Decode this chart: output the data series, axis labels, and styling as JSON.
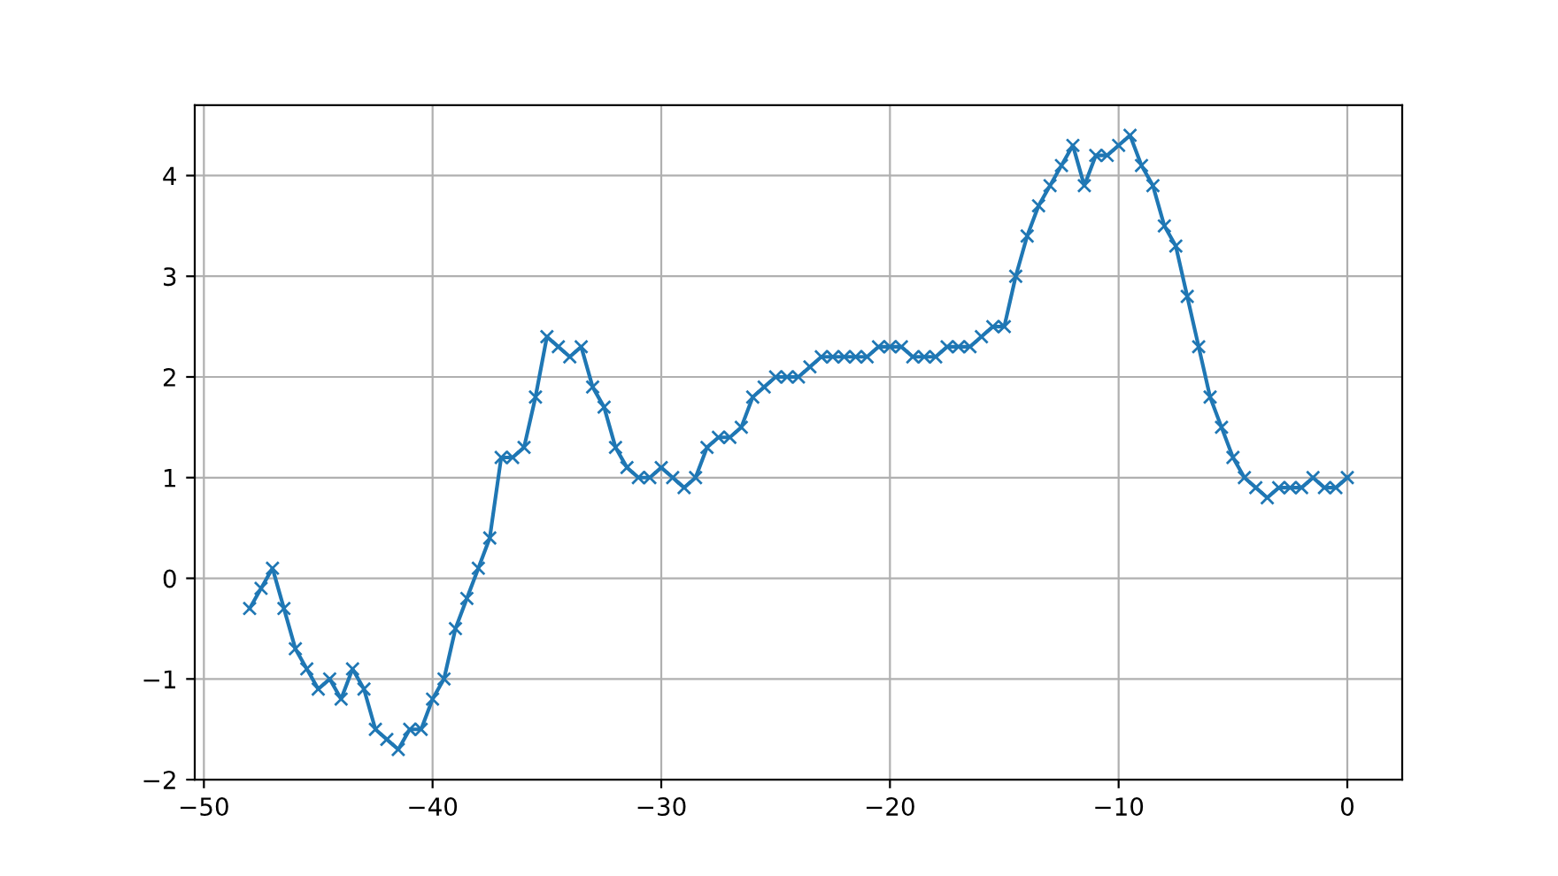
{
  "chart_data": {
    "type": "line",
    "marker": "cross",
    "line_style": "solid",
    "grid": true,
    "x": [
      -48,
      -47.5,
      -47,
      -46.5,
      -46,
      -45.5,
      -45,
      -44.5,
      -44,
      -43.5,
      -43,
      -42.5,
      -42,
      -41.5,
      -41,
      -40.5,
      -40,
      -39.5,
      -39,
      -38.5,
      -38,
      -37.5,
      -37,
      -36.5,
      -36,
      -35.5,
      -35,
      -34.5,
      -34,
      -33.5,
      -33,
      -32.5,
      -32,
      -31.5,
      -31,
      -30.5,
      -30,
      -29.5,
      -29,
      -28.5,
      -28,
      -27.5,
      -27,
      -26.5,
      -26,
      -25.5,
      -25,
      -24.5,
      -24,
      -23.5,
      -23,
      -22.5,
      -22,
      -21.5,
      -21,
      -20.5,
      -20,
      -19.5,
      -19,
      -18.5,
      -18,
      -17.5,
      -17,
      -16.5,
      -16,
      -15.5,
      -15,
      -14.5,
      -14,
      -13.5,
      -13,
      -12.5,
      -12,
      -11.5,
      -11,
      -10.5,
      -10,
      -9.5,
      -9,
      -8.5,
      -8,
      -7.5,
      -7,
      -6.5,
      -6,
      -5.5,
      -5,
      -4.5,
      -4,
      -3.5,
      -3,
      -2.5,
      -2,
      -1.5,
      -1,
      -0.5,
      0
    ],
    "series": [
      {
        "color": "#1f77b4",
        "values": [
          -0.3,
          -0.1,
          0.1,
          -0.3,
          -0.7,
          -0.9,
          -1.1,
          -1.0,
          -1.2,
          -0.9,
          -1.1,
          -1.5,
          -1.6,
          -1.7,
          -1.5,
          -1.5,
          -1.2,
          -1.0,
          -0.5,
          -0.2,
          0.1,
          0.4,
          1.2,
          1.2,
          1.3,
          1.8,
          2.4,
          2.3,
          2.2,
          2.3,
          1.9,
          1.7,
          1.3,
          1.1,
          1.0,
          1.0,
          1.1,
          1.0,
          0.9,
          1.0,
          1.3,
          1.4,
          1.4,
          1.5,
          1.8,
          1.9,
          2.0,
          2.0,
          2.0,
          2.1,
          2.2,
          2.2,
          2.2,
          2.2,
          2.2,
          2.3,
          2.3,
          2.3,
          2.2,
          2.2,
          2.2,
          2.3,
          2.3,
          2.3,
          2.4,
          2.5,
          2.5,
          3.0,
          3.4,
          3.7,
          3.9,
          4.1,
          4.3,
          3.9,
          4.2,
          4.2,
          4.3,
          4.4,
          4.1,
          3.9,
          3.5,
          3.3,
          2.8,
          2.3,
          1.8,
          1.5,
          1.2,
          1.0,
          0.9,
          0.8,
          0.9,
          0.9,
          0.9,
          1.0,
          0.9,
          0.9,
          1.0
        ]
      }
    ],
    "xlim": [
      -50.4,
      2.4
    ],
    "ylim": [
      -2.0,
      4.7
    ],
    "xticks": [
      {
        "value": -50,
        "label": "−50"
      },
      {
        "value": -40,
        "label": "−40"
      },
      {
        "value": -30,
        "label": "−30"
      },
      {
        "value": -20,
        "label": "−20"
      },
      {
        "value": -10,
        "label": "−10"
      },
      0
    ],
    "yticks": [
      {
        "value": -2,
        "label": "−2"
      },
      {
        "value": -1,
        "label": "−1"
      },
      0,
      1,
      2,
      3,
      4
    ]
  }
}
